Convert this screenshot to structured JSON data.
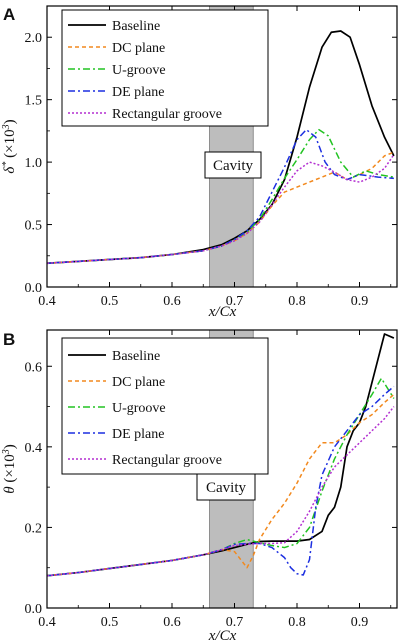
{
  "chart_data": [
    {
      "panel": "A",
      "type": "line",
      "xlabel": "x/Cx",
      "ylabel": "δ* (×10³)",
      "xlim": [
        0.4,
        0.96
      ],
      "ylim": [
        0.0,
        2.25
      ],
      "xticks": [
        "0.4",
        "0.5",
        "0.6",
        "0.7",
        "0.8",
        "0.9"
      ],
      "yticks": [
        "0.0",
        "0.5",
        "1.0",
        "1.5",
        "2.0"
      ],
      "annotation": "Cavity",
      "shaded_band": [
        0.66,
        0.73
      ],
      "legend_position": "top-left",
      "grid": false,
      "series": [
        {
          "name": "Baseline",
          "color": "#000000",
          "dash": "solid",
          "x": [
            0.4,
            0.45,
            0.5,
            0.55,
            0.6,
            0.65,
            0.68,
            0.7,
            0.72,
            0.74,
            0.76,
            0.78,
            0.8,
            0.82,
            0.84,
            0.855,
            0.87,
            0.885,
            0.9,
            0.92,
            0.94,
            0.955
          ],
          "y": [
            0.19,
            0.205,
            0.22,
            0.235,
            0.26,
            0.3,
            0.34,
            0.39,
            0.45,
            0.54,
            0.66,
            0.86,
            1.2,
            1.6,
            1.92,
            2.04,
            2.05,
            2.0,
            1.78,
            1.45,
            1.2,
            1.05
          ]
        },
        {
          "name": "DC plane",
          "color": "#f2891e",
          "dash": "short-dash",
          "x": [
            0.4,
            0.45,
            0.5,
            0.55,
            0.6,
            0.65,
            0.68,
            0.7,
            0.72,
            0.74,
            0.76,
            0.78,
            0.8,
            0.82,
            0.84,
            0.86,
            0.88,
            0.9,
            0.92,
            0.94,
            0.955
          ],
          "y": [
            0.19,
            0.205,
            0.22,
            0.235,
            0.26,
            0.29,
            0.33,
            0.37,
            0.43,
            0.52,
            0.65,
            0.76,
            0.8,
            0.84,
            0.88,
            0.92,
            0.86,
            0.9,
            0.95,
            1.05,
            1.08
          ]
        },
        {
          "name": "U-groove",
          "color": "#22c322",
          "dash": "dash-dot",
          "x": [
            0.4,
            0.45,
            0.5,
            0.55,
            0.6,
            0.65,
            0.68,
            0.7,
            0.72,
            0.74,
            0.76,
            0.78,
            0.8,
            0.82,
            0.835,
            0.85,
            0.87,
            0.89,
            0.91,
            0.93,
            0.955
          ],
          "y": [
            0.19,
            0.205,
            0.22,
            0.235,
            0.26,
            0.29,
            0.33,
            0.38,
            0.44,
            0.54,
            0.7,
            0.87,
            1.02,
            1.18,
            1.26,
            1.21,
            1.0,
            0.88,
            0.93,
            0.9,
            0.88
          ]
        },
        {
          "name": "DE plane",
          "color": "#1c2fe0",
          "dash": "dash-dot",
          "x": [
            0.4,
            0.45,
            0.5,
            0.55,
            0.6,
            0.65,
            0.68,
            0.7,
            0.72,
            0.74,
            0.76,
            0.78,
            0.8,
            0.815,
            0.83,
            0.845,
            0.86,
            0.88,
            0.9,
            0.93,
            0.955
          ],
          "y": [
            0.19,
            0.205,
            0.22,
            0.235,
            0.26,
            0.29,
            0.33,
            0.38,
            0.45,
            0.56,
            0.76,
            0.96,
            1.18,
            1.26,
            1.2,
            1.0,
            0.9,
            0.86,
            0.9,
            0.88,
            0.87
          ]
        },
        {
          "name": "Rectangular groove",
          "color": "#b32fd1",
          "dash": "dotted",
          "x": [
            0.4,
            0.45,
            0.5,
            0.55,
            0.6,
            0.65,
            0.68,
            0.7,
            0.72,
            0.74,
            0.76,
            0.78,
            0.8,
            0.82,
            0.84,
            0.86,
            0.88,
            0.9,
            0.92,
            0.94,
            0.955
          ],
          "y": [
            0.19,
            0.205,
            0.22,
            0.235,
            0.26,
            0.29,
            0.33,
            0.37,
            0.43,
            0.52,
            0.66,
            0.8,
            0.93,
            1.0,
            0.97,
            0.92,
            0.86,
            0.84,
            0.88,
            0.95,
            1.06
          ]
        }
      ]
    },
    {
      "panel": "B",
      "type": "line",
      "xlabel": "x/Cx",
      "ylabel": "θ (×10³)",
      "xlim": [
        0.4,
        0.96
      ],
      "ylim": [
        0.0,
        0.69
      ],
      "xticks": [
        "0.4",
        "0.5",
        "0.6",
        "0.7",
        "0.8",
        "0.9"
      ],
      "yticks": [
        "0.0",
        "0.2",
        "0.4",
        "0.6"
      ],
      "annotation": "Cavity",
      "shaded_band": [
        0.66,
        0.73
      ],
      "legend_position": "top-left",
      "grid": false,
      "series": [
        {
          "name": "Baseline",
          "color": "#000000",
          "dash": "solid",
          "x": [
            0.4,
            0.45,
            0.5,
            0.55,
            0.6,
            0.65,
            0.68,
            0.7,
            0.72,
            0.74,
            0.76,
            0.78,
            0.8,
            0.82,
            0.84,
            0.85,
            0.86,
            0.87,
            0.88,
            0.89,
            0.9,
            0.91,
            0.93,
            0.94,
            0.955
          ],
          "y": [
            0.08,
            0.088,
            0.098,
            0.108,
            0.118,
            0.132,
            0.142,
            0.15,
            0.158,
            0.165,
            0.166,
            0.166,
            0.166,
            0.17,
            0.19,
            0.23,
            0.25,
            0.3,
            0.4,
            0.44,
            0.46,
            0.5,
            0.62,
            0.68,
            0.67
          ]
        },
        {
          "name": "DC plane",
          "color": "#f2891e",
          "dash": "short-dash",
          "x": [
            0.4,
            0.45,
            0.5,
            0.55,
            0.6,
            0.65,
            0.68,
            0.7,
            0.71,
            0.72,
            0.73,
            0.74,
            0.76,
            0.78,
            0.8,
            0.82,
            0.84,
            0.86,
            0.88,
            0.9,
            0.92,
            0.94,
            0.955
          ],
          "y": [
            0.08,
            0.088,
            0.098,
            0.108,
            0.118,
            0.132,
            0.145,
            0.14,
            0.12,
            0.1,
            0.13,
            0.17,
            0.22,
            0.26,
            0.31,
            0.37,
            0.41,
            0.41,
            0.43,
            0.46,
            0.48,
            0.51,
            0.53
          ]
        },
        {
          "name": "U-groove",
          "color": "#22c322",
          "dash": "dash-dot",
          "x": [
            0.4,
            0.45,
            0.5,
            0.55,
            0.6,
            0.65,
            0.68,
            0.7,
            0.72,
            0.74,
            0.76,
            0.78,
            0.8,
            0.82,
            0.84,
            0.86,
            0.88,
            0.9,
            0.92,
            0.935,
            0.955
          ],
          "y": [
            0.08,
            0.088,
            0.098,
            0.108,
            0.118,
            0.132,
            0.145,
            0.16,
            0.17,
            0.162,
            0.155,
            0.15,
            0.16,
            0.2,
            0.29,
            0.37,
            0.43,
            0.48,
            0.53,
            0.57,
            0.52
          ]
        },
        {
          "name": "DE plane",
          "color": "#1c2fe0",
          "dash": "dash-dot",
          "x": [
            0.4,
            0.45,
            0.5,
            0.55,
            0.6,
            0.65,
            0.68,
            0.7,
            0.72,
            0.74,
            0.76,
            0.78,
            0.79,
            0.8,
            0.81,
            0.82,
            0.83,
            0.84,
            0.86,
            0.88,
            0.9,
            0.92,
            0.94,
            0.955
          ],
          "y": [
            0.08,
            0.088,
            0.098,
            0.108,
            0.118,
            0.132,
            0.145,
            0.158,
            0.16,
            0.16,
            0.15,
            0.125,
            0.1,
            0.085,
            0.082,
            0.12,
            0.25,
            0.33,
            0.4,
            0.44,
            0.48,
            0.5,
            0.53,
            0.55
          ]
        },
        {
          "name": "Rectangular groove",
          "color": "#b32fd1",
          "dash": "dotted",
          "x": [
            0.4,
            0.45,
            0.5,
            0.55,
            0.6,
            0.65,
            0.68,
            0.7,
            0.72,
            0.74,
            0.76,
            0.78,
            0.8,
            0.82,
            0.84,
            0.86,
            0.88,
            0.9,
            0.92,
            0.94,
            0.955
          ],
          "y": [
            0.08,
            0.088,
            0.098,
            0.108,
            0.118,
            0.132,
            0.145,
            0.155,
            0.158,
            0.16,
            0.16,
            0.162,
            0.19,
            0.24,
            0.3,
            0.35,
            0.38,
            0.41,
            0.44,
            0.47,
            0.5
          ]
        }
      ]
    }
  ]
}
